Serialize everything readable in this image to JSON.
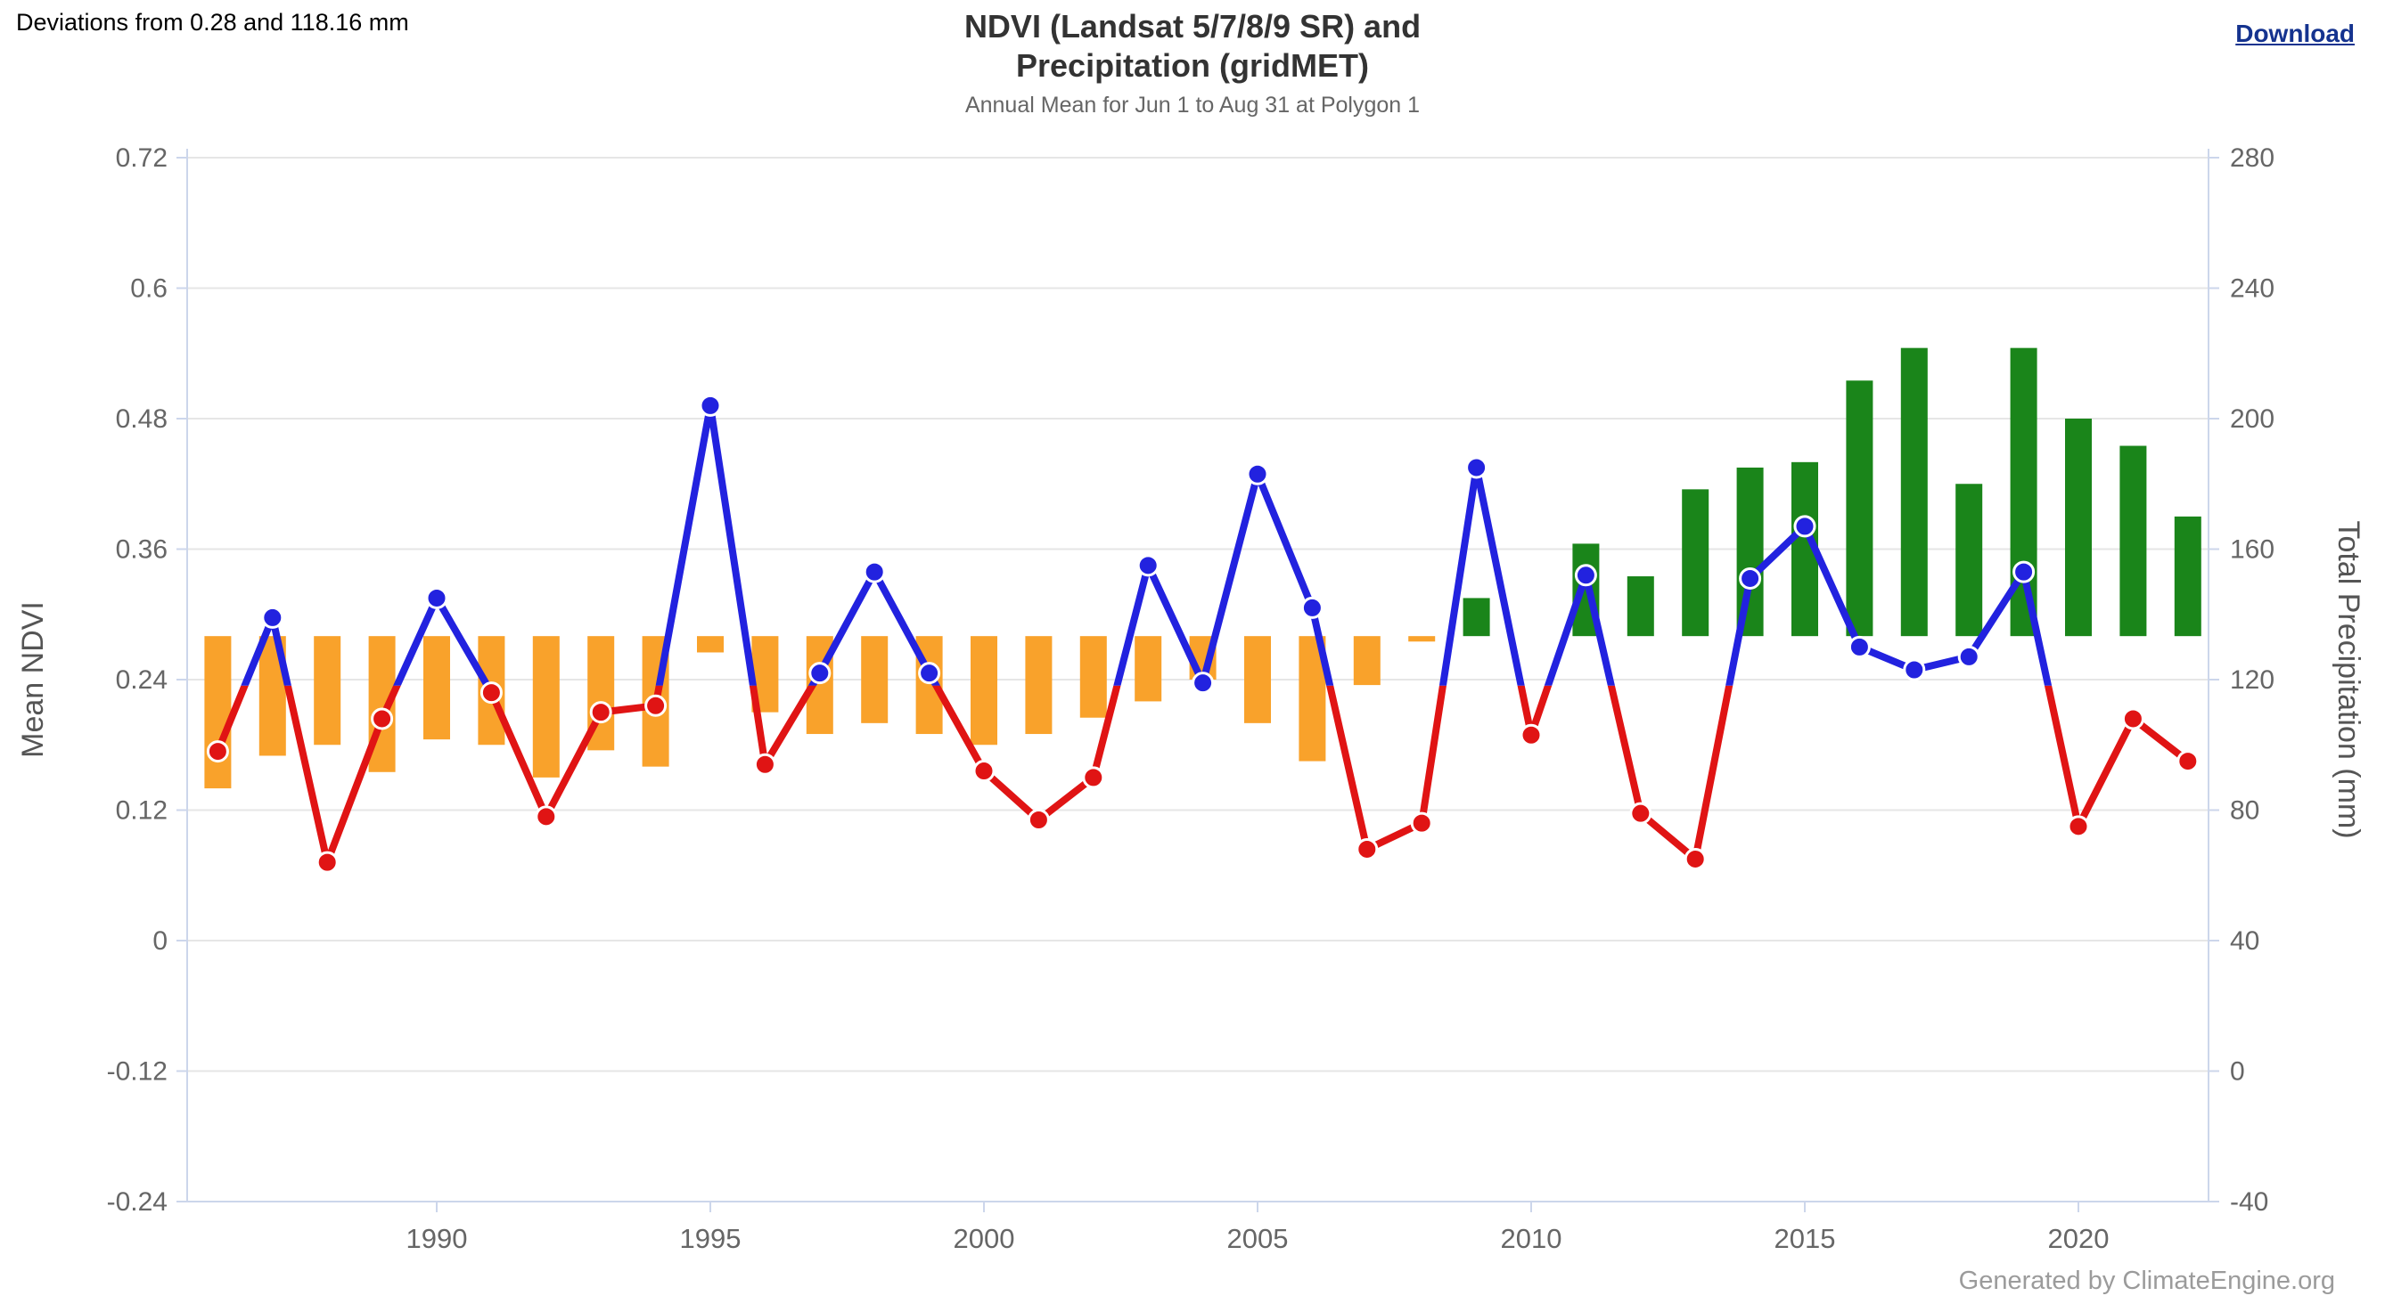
{
  "header": {
    "deviations_label": "Deviations from 0.28 and 118.16 mm",
    "title_line1": "NDVI (Landsat 5/7/8/9 SR) and",
    "title_line2": "Precipitation (gridMET)",
    "subtitle": "Annual Mean for Jun 1 to Aug 31 at Polygon 1",
    "download_label": "Download"
  },
  "footer": {
    "credit": "Generated by ClimateEngine.org"
  },
  "colors": {
    "bar_positive_green": "#1A851A",
    "bar_negative_orange": "#F9A22B",
    "line_above_blue": "#2222DF",
    "line_below_red": "#E01414",
    "gridline": "#E6E6E6",
    "axis_line": "#CCD6EB",
    "tick_label": "#666666",
    "axis_title": "#555555",
    "title": "#333333",
    "subtitle": "#666666",
    "credit": "#9B9B9B",
    "download_link": "#15338F"
  },
  "chart_data": {
    "type": "bar",
    "subtype": "combo dual-axis: deviation bars (left axis) + threshold-colored line (right axis)",
    "title": "NDVI (Landsat 5/7/8/9 SR) and Precipitation (gridMET)",
    "subtitle": "Annual Mean for Jun 1 to Aug 31 at Polygon 1",
    "annotation": "Deviations from 0.28 and 118.16 mm",
    "years": [
      1986,
      1987,
      1988,
      1989,
      1990,
      1991,
      1992,
      1993,
      1994,
      1995,
      1996,
      1997,
      1998,
      1999,
      2000,
      2001,
      2002,
      2003,
      2004,
      2005,
      2006,
      2007,
      2008,
      2009,
      2010,
      2011,
      2012,
      2013,
      2014,
      2015,
      2016,
      2017,
      2018,
      2019,
      2020,
      2021,
      2022
    ],
    "series": [
      {
        "name": "NDVI deviation bars (Mean NDVI, deviation from 0.28)",
        "type": "bar",
        "axis": "left",
        "baseline": 0.28,
        "values": [
          0.14,
          0.17,
          0.18,
          0.155,
          0.185,
          0.18,
          0.15,
          0.175,
          0.16,
          0.265,
          0.21,
          0.19,
          0.2,
          0.19,
          0.18,
          0.19,
          0.205,
          0.22,
          0.24,
          0.2,
          0.165,
          0.235,
          0.275,
          0.315,
          0.28,
          0.365,
          0.335,
          0.415,
          0.435,
          0.44,
          0.515,
          0.545,
          0.42,
          0.545,
          0.48,
          0.455,
          0.39
        ],
        "color_above": "#1A851A",
        "color_below": "#F9A22B"
      },
      {
        "name": "Total Precipitation line (mm, colored by threshold 118.16)",
        "type": "line",
        "axis": "right",
        "threshold": 118.16,
        "values": [
          98,
          139,
          64,
          108,
          145,
          116,
          78,
          110,
          112,
          204,
          94,
          122,
          153,
          122,
          92,
          77,
          90,
          155,
          119,
          183,
          142,
          68,
          76,
          185,
          103,
          152,
          79,
          65,
          151,
          167,
          130,
          123,
          127,
          153,
          75,
          108,
          95
        ],
        "color_above": "#2222DF",
        "color_below": "#E01414"
      }
    ],
    "left_axis": {
      "title": "Mean NDVI",
      "min": -0.24,
      "max": 0.72,
      "ticks": [
        0.72,
        0.6,
        0.48,
        0.36,
        0.24,
        0.12,
        0,
        -0.12,
        -0.24
      ],
      "tick_labels": [
        "0.72",
        "0.6",
        "0.48",
        "0.36",
        "0.24",
        "0.12",
        "0",
        "-0.12",
        "-0.24"
      ]
    },
    "right_axis": {
      "title": "Total Precipitation (mm)",
      "min": -40,
      "max": 280,
      "ticks": [
        280,
        240,
        200,
        160,
        120,
        80,
        40,
        0,
        -40
      ],
      "tick_labels": [
        "280",
        "240",
        "200",
        "160",
        "120",
        "80",
        "40",
        "0",
        "-40"
      ]
    },
    "x_axis": {
      "ticks": [
        1990,
        1995,
        2000,
        2005,
        2010,
        2015,
        2020
      ],
      "tick_labels": [
        "1990",
        "1995",
        "2000",
        "2005",
        "2010",
        "2015",
        "2020"
      ]
    },
    "grid": true,
    "legend": "none"
  }
}
